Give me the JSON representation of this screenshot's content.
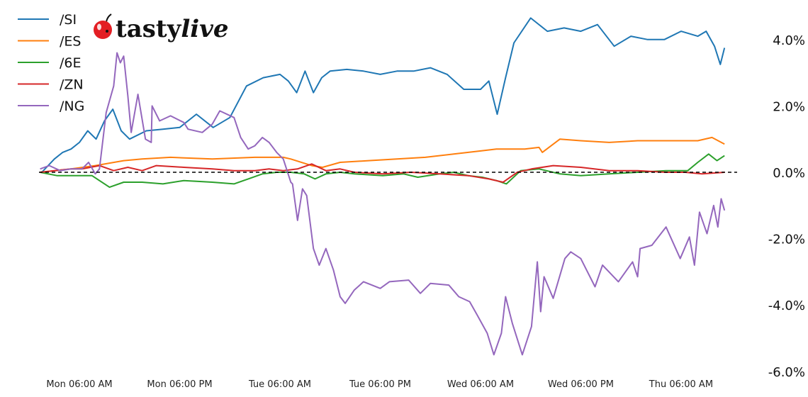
{
  "logo": {
    "text": "tastylive",
    "part1": "tasty",
    "part2": "live"
  },
  "chart_data": {
    "type": "line",
    "title": "",
    "xlabel": "",
    "ylabel": "",
    "x_units": "hours since Mon 00:00",
    "xlim": [
      1.3,
      83.2
    ],
    "ylim": [
      -6.0,
      5.0
    ],
    "x_ticks": [
      {
        "x": 6,
        "label": "Mon 06:00 AM"
      },
      {
        "x": 18,
        "label": "Mon 06:00 PM"
      },
      {
        "x": 30,
        "label": "Tue 06:00 AM"
      },
      {
        "x": 42,
        "label": "Tue 06:00 PM"
      },
      {
        "x": 54,
        "label": "Wed 06:00 AM"
      },
      {
        "x": 66,
        "label": "Wed 06:00 PM"
      },
      {
        "x": 78,
        "label": "Thu 06:00 AM"
      }
    ],
    "y_ticks": [
      {
        "y": 4,
        "label": "4.0%"
      },
      {
        "y": 2,
        "label": "2.0%"
      },
      {
        "y": 0,
        "label": "0.0%"
      },
      {
        "y": -2,
        "label": "-2.0%"
      },
      {
        "y": -4,
        "label": "-4.0%"
      },
      {
        "y": -6,
        "label": "-6.0%"
      }
    ],
    "reference_line": {
      "y": 0,
      "style": "dashed",
      "color": "#000000"
    },
    "legend_position": "top-left",
    "grid": false,
    "series": [
      {
        "name": "/SI",
        "color": "#1f77b4",
        "points": [
          [
            1.5,
            0
          ],
          [
            3,
            0.4
          ],
          [
            4,
            0.6
          ],
          [
            5,
            0.7
          ],
          [
            6,
            0.9
          ],
          [
            7,
            1.25
          ],
          [
            8,
            1.0
          ],
          [
            9,
            1.55
          ],
          [
            10,
            1.9
          ],
          [
            11,
            1.25
          ],
          [
            12,
            1.0
          ],
          [
            14,
            1.25
          ],
          [
            16,
            1.3
          ],
          [
            18,
            1.35
          ],
          [
            20,
            1.75
          ],
          [
            22,
            1.35
          ],
          [
            24,
            1.65
          ],
          [
            26,
            2.6
          ],
          [
            28,
            2.85
          ],
          [
            30,
            2.95
          ],
          [
            31,
            2.75
          ],
          [
            32,
            2.4
          ],
          [
            33,
            3.05
          ],
          [
            34,
            2.4
          ],
          [
            35,
            2.85
          ],
          [
            36,
            3.05
          ],
          [
            38,
            3.1
          ],
          [
            40,
            3.05
          ],
          [
            42,
            2.95
          ],
          [
            44,
            3.05
          ],
          [
            46,
            3.05
          ],
          [
            48,
            3.15
          ],
          [
            50,
            2.95
          ],
          [
            52,
            2.5
          ],
          [
            54,
            2.5
          ],
          [
            55,
            2.75
          ],
          [
            56,
            1.75
          ],
          [
            57,
            2.85
          ],
          [
            58,
            3.9
          ],
          [
            60,
            4.65
          ],
          [
            62,
            4.25
          ],
          [
            64,
            4.35
          ],
          [
            66,
            4.25
          ],
          [
            68,
            4.45
          ],
          [
            70,
            3.8
          ],
          [
            72,
            4.1
          ],
          [
            74,
            4.0
          ],
          [
            76,
            4.0
          ],
          [
            78,
            4.25
          ],
          [
            80,
            4.1
          ],
          [
            81,
            4.25
          ],
          [
            82,
            3.8
          ],
          [
            82.7,
            3.25
          ],
          [
            83.2,
            3.75
          ]
        ]
      },
      {
        "name": "/ES",
        "color": "#ff7f0e",
        "points": [
          [
            1.3,
            0
          ],
          [
            5,
            0.1
          ],
          [
            7.9,
            0.2
          ],
          [
            11.3,
            0.35
          ],
          [
            13.5,
            0.4
          ],
          [
            16.9,
            0.45
          ],
          [
            21.9,
            0.4
          ],
          [
            27,
            0.45
          ],
          [
            30.4,
            0.45
          ],
          [
            31.3,
            0.4
          ],
          [
            33.8,
            0.2
          ],
          [
            35.1,
            0.15
          ],
          [
            37.2,
            0.3
          ],
          [
            40.6,
            0.35
          ],
          [
            44,
            0.4
          ],
          [
            47.4,
            0.45
          ],
          [
            50.8,
            0.55
          ],
          [
            54.2,
            0.65
          ],
          [
            55.9,
            0.7
          ],
          [
            59.3,
            0.7
          ],
          [
            61,
            0.75
          ],
          [
            61.4,
            0.6
          ],
          [
            63.5,
            1.0
          ],
          [
            66,
            0.95
          ],
          [
            69.4,
            0.9
          ],
          [
            72.8,
            0.95
          ],
          [
            76.2,
            0.95
          ],
          [
            80,
            0.95
          ],
          [
            81.7,
            1.05
          ],
          [
            83.2,
            0.85
          ]
        ]
      },
      {
        "name": "/6E",
        "color": "#2ca02c",
        "points": [
          [
            1.3,
            0
          ],
          [
            3.3,
            -0.1
          ],
          [
            5,
            -0.1
          ],
          [
            7.5,
            -0.1
          ],
          [
            9.6,
            -0.45
          ],
          [
            11.3,
            -0.3
          ],
          [
            13.5,
            -0.3
          ],
          [
            16,
            -0.35
          ],
          [
            18.5,
            -0.25
          ],
          [
            21.9,
            -0.3
          ],
          [
            24.5,
            -0.35
          ],
          [
            26.2,
            -0.2
          ],
          [
            27.9,
            -0.05
          ],
          [
            29.6,
            0
          ],
          [
            31.3,
            0
          ],
          [
            32.9,
            -0.05
          ],
          [
            34.2,
            -0.2
          ],
          [
            35.5,
            -0.05
          ],
          [
            37.2,
            0
          ],
          [
            38.9,
            -0.05
          ],
          [
            42.3,
            -0.1
          ],
          [
            44.8,
            -0.05
          ],
          [
            46.5,
            -0.15
          ],
          [
            49.1,
            -0.05
          ],
          [
            50.8,
            0
          ],
          [
            52.5,
            -0.1
          ],
          [
            54.2,
            -0.15
          ],
          [
            55.9,
            -0.25
          ],
          [
            57.1,
            -0.35
          ],
          [
            58.8,
            0.05
          ],
          [
            61,
            0.1
          ],
          [
            63.5,
            -0.05
          ],
          [
            66,
            -0.1
          ],
          [
            69.4,
            -0.05
          ],
          [
            72.8,
            0
          ],
          [
            76.2,
            0.05
          ],
          [
            78.8,
            0.05
          ],
          [
            80,
            0.3
          ],
          [
            81.3,
            0.55
          ],
          [
            82.3,
            0.35
          ],
          [
            83.2,
            0.5
          ]
        ]
      },
      {
        "name": "/ZN",
        "color": "#d62728",
        "points": [
          [
            1.3,
            0
          ],
          [
            5,
            0.1
          ],
          [
            6.3,
            0.1
          ],
          [
            8.4,
            0.2
          ],
          [
            10.1,
            0.05
          ],
          [
            11.8,
            0.15
          ],
          [
            13.5,
            0.05
          ],
          [
            15.2,
            0.2
          ],
          [
            18.5,
            0.15
          ],
          [
            21.9,
            0.1
          ],
          [
            24.5,
            0.05
          ],
          [
            27,
            0.05
          ],
          [
            28.7,
            0.1
          ],
          [
            30.4,
            0.05
          ],
          [
            32.1,
            0.1
          ],
          [
            33.8,
            0.25
          ],
          [
            35.5,
            0.05
          ],
          [
            37.2,
            0.1
          ],
          [
            38.9,
            0
          ],
          [
            42.3,
            -0.05
          ],
          [
            45.7,
            0
          ],
          [
            49.1,
            -0.05
          ],
          [
            52.5,
            -0.1
          ],
          [
            55,
            -0.2
          ],
          [
            56.7,
            -0.3
          ],
          [
            58.4,
            0
          ],
          [
            60.1,
            0.1
          ],
          [
            62.7,
            0.2
          ],
          [
            66,
            0.15
          ],
          [
            69.4,
            0.05
          ],
          [
            72.8,
            0.05
          ],
          [
            76.2,
            0
          ],
          [
            78.5,
            0
          ],
          [
            80.5,
            -0.05
          ],
          [
            83.2,
            0
          ]
        ]
      },
      {
        "name": "/NG",
        "color": "#9467bd",
        "points": [
          [
            1.3,
            0.1
          ],
          [
            2.4,
            0.2
          ],
          [
            3.7,
            0.05
          ],
          [
            5,
            0.1
          ],
          [
            6.3,
            0.1
          ],
          [
            7.1,
            0.3
          ],
          [
            7.9,
            -0.05
          ],
          [
            8.4,
            0.1
          ],
          [
            9.2,
            1.8
          ],
          [
            10.1,
            2.6
          ],
          [
            10.5,
            3.6
          ],
          [
            10.9,
            3.3
          ],
          [
            11.3,
            3.5
          ],
          [
            11.8,
            2.3
          ],
          [
            12.2,
            1.2
          ],
          [
            13,
            2.35
          ],
          [
            13.9,
            1.0
          ],
          [
            14.6,
            0.9
          ],
          [
            14.7,
            2.0
          ],
          [
            15.6,
            1.55
          ],
          [
            16.9,
            1.7
          ],
          [
            18.5,
            1.5
          ],
          [
            19,
            1.3
          ],
          [
            20.7,
            1.2
          ],
          [
            21.9,
            1.45
          ],
          [
            22.8,
            1.85
          ],
          [
            24.5,
            1.65
          ],
          [
            25.3,
            1.05
          ],
          [
            26.2,
            0.7
          ],
          [
            27,
            0.8
          ],
          [
            27.9,
            1.05
          ],
          [
            28.7,
            0.9
          ],
          [
            29.6,
            0.6
          ],
          [
            30.4,
            0.4
          ],
          [
            31.3,
            -0.3
          ],
          [
            31.5,
            -0.35
          ],
          [
            32.1,
            -1.45
          ],
          [
            32.7,
            -0.5
          ],
          [
            33.2,
            -0.7
          ],
          [
            34,
            -2.3
          ],
          [
            34.7,
            -2.8
          ],
          [
            35.5,
            -2.3
          ],
          [
            36.4,
            -2.95
          ],
          [
            37.2,
            -3.75
          ],
          [
            37.8,
            -3.95
          ],
          [
            38.9,
            -3.55
          ],
          [
            40,
            -3.3
          ],
          [
            42,
            -3.5
          ],
          [
            43.1,
            -3.3
          ],
          [
            45.4,
            -3.25
          ],
          [
            46.8,
            -3.65
          ],
          [
            48,
            -3.35
          ],
          [
            50.2,
            -3.4
          ],
          [
            51.4,
            -3.75
          ],
          [
            52.7,
            -3.9
          ],
          [
            53.6,
            -4.3
          ],
          [
            54.8,
            -4.85
          ],
          [
            55.6,
            -5.5
          ],
          [
            56.5,
            -4.85
          ],
          [
            57,
            -3.75
          ],
          [
            57.8,
            -4.55
          ],
          [
            59,
            -5.5
          ],
          [
            60.1,
            -4.65
          ],
          [
            60.8,
            -2.7
          ],
          [
            61.2,
            -4.2
          ],
          [
            61.6,
            -3.15
          ],
          [
            62.7,
            -3.8
          ],
          [
            64.1,
            -2.6
          ],
          [
            64.8,
            -2.4
          ],
          [
            66,
            -2.6
          ],
          [
            67.7,
            -3.45
          ],
          [
            68.6,
            -2.8
          ],
          [
            70.5,
            -3.3
          ],
          [
            72.2,
            -2.7
          ],
          [
            72.8,
            -3.15
          ],
          [
            73.1,
            -2.3
          ],
          [
            74.5,
            -2.2
          ],
          [
            76.2,
            -1.65
          ],
          [
            77.9,
            -2.6
          ],
          [
            79,
            -1.95
          ],
          [
            79.6,
            -2.8
          ],
          [
            80.2,
            -1.2
          ],
          [
            81.1,
            -1.85
          ],
          [
            81.9,
            -1.0
          ],
          [
            82.4,
            -1.65
          ],
          [
            82.8,
            -0.8
          ],
          [
            83.2,
            -1.15
          ]
        ]
      }
    ]
  }
}
